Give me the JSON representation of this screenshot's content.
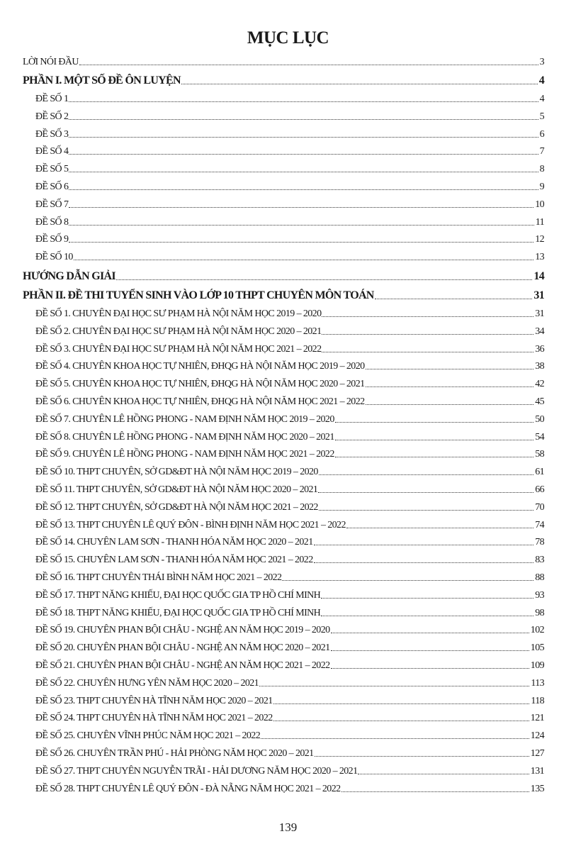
{
  "title": "MỤC LỤC",
  "entries": [
    {
      "label": "LỜI NÓI ĐẦU",
      "page": "3",
      "level": "top"
    },
    {
      "label": "PHẦN I. MỘT SỐ ĐỀ ÔN LUYỆN",
      "page": "4",
      "level": "major"
    },
    {
      "label": "ĐỀ SỐ 1",
      "page": "4",
      "level": "sub"
    },
    {
      "label": "ĐỀ SỐ 2",
      "page": "5",
      "level": "sub"
    },
    {
      "label": "ĐỀ SỐ 3",
      "page": "6",
      "level": "sub"
    },
    {
      "label": "ĐỀ SỐ 4",
      "page": "7",
      "level": "sub"
    },
    {
      "label": "ĐỀ SỐ 5",
      "page": "8",
      "level": "sub"
    },
    {
      "label": "ĐỀ SỐ 6",
      "page": "9",
      "level": "sub"
    },
    {
      "label": "ĐỀ SỐ 7",
      "page": "10",
      "level": "sub"
    },
    {
      "label": "ĐỀ SỐ 8",
      "page": "11",
      "level": "sub"
    },
    {
      "label": "ĐỀ SỐ 9",
      "page": "12",
      "level": "sub"
    },
    {
      "label": "ĐỀ SỐ 10",
      "page": "13",
      "level": "sub"
    },
    {
      "label": "HƯỚNG DẪN GIẢI",
      "page": "14",
      "level": "major"
    },
    {
      "label": "PHẦN II. ĐỀ THI TUYỂN SINH VÀO LỚP 10 THPT CHUYÊN MÔN TOÁN",
      "page": "31",
      "level": "major"
    },
    {
      "label": "ĐỀ SỐ 1. CHUYÊN ĐẠI HỌC SƯ PHẠM HÀ NỘI NĂM HỌC 2019 – 2020",
      "page": "31",
      "level": "sub"
    },
    {
      "label": "ĐỀ SỐ 2. CHUYÊN ĐẠI HỌC SƯ PHẠM HÀ NỘI NĂM HỌC 2020 – 2021",
      "page": "34",
      "level": "sub"
    },
    {
      "label": "ĐỀ SỐ 3. CHUYÊN ĐẠI HỌC SƯ PHẠM HÀ NỘI NĂM HỌC 2021 – 2022",
      "page": "36",
      "level": "sub"
    },
    {
      "label": "ĐỀ SỐ 4. CHUYÊN KHOA HỌC TỰ NHIÊN, ĐHQG HÀ NỘI NĂM HỌC 2019 – 2020",
      "page": "38",
      "level": "sub"
    },
    {
      "label": "ĐỀ SỐ 5. CHUYÊN KHOA HỌC TỰ NHIÊN, ĐHQG HÀ NỘI NĂM HỌC 2020 – 2021",
      "page": "42",
      "level": "sub"
    },
    {
      "label": "ĐỀ SỐ 6. CHUYÊN KHOA HỌC TỰ NHIÊN, ĐHQG HÀ NỘI NĂM HỌC 2021 – 2022",
      "page": "45",
      "level": "sub"
    },
    {
      "label": "ĐỀ SỐ 7. CHUYÊN LÊ HỒNG PHONG - NAM ĐỊNH NĂM HỌC 2019 – 2020",
      "page": "50",
      "level": "sub"
    },
    {
      "label": "ĐỀ SỐ 8. CHUYÊN LÊ HỒNG PHONG - NAM ĐỊNH NĂM HỌC 2020 – 2021",
      "page": "54",
      "level": "sub"
    },
    {
      "label": "ĐỀ SỐ 9. CHUYÊN LÊ HỒNG PHONG - NAM ĐỊNH NĂM HỌC 2021 – 2022",
      "page": "58",
      "level": "sub"
    },
    {
      "label": "ĐỀ SỐ 10. THPT CHUYÊN, SỞ GD&ĐT HÀ NỘI NĂM HỌC 2019 – 2020",
      "page": "61",
      "level": "sub"
    },
    {
      "label": "ĐỀ SỐ 11. THPT CHUYÊN, SỞ GD&ĐT HÀ NỘI NĂM HỌC 2020 – 2021",
      "page": "66",
      "level": "sub"
    },
    {
      "label": "ĐỀ SỐ 12. THPT CHUYÊN, SỞ GD&ĐT HÀ NỘI NĂM HỌC 2021 – 2022",
      "page": "70",
      "level": "sub"
    },
    {
      "label": "ĐỀ SỐ 13. THPT CHUYÊN LÊ QUÝ ĐÔN - BÌNH ĐỊNH NĂM HỌC 2021 – 2022",
      "page": "74",
      "level": "sub"
    },
    {
      "label": "ĐỀ SỐ 14. CHUYÊN LAM SƠN - THANH HÓA NĂM HỌC 2020 – 2021",
      "page": "78",
      "level": "sub"
    },
    {
      "label": "ĐỀ SỐ 15. CHUYÊN LAM SƠN - THANH HÓA NĂM HỌC 2021 – 2022",
      "page": "83",
      "level": "sub"
    },
    {
      "label": "ĐỀ SỐ 16. THPT CHUYÊN THÁI BÌNH NĂM HỌC 2021 – 2022",
      "page": "88",
      "level": "sub"
    },
    {
      "label": "ĐỀ SỐ 17. THPT NĂNG KHIẾU, ĐẠI HỌC QUỐC GIA TP HỒ CHÍ MINH",
      "page": "93",
      "level": "sub"
    },
    {
      "label": "ĐỀ SỐ 18. THPT NĂNG KHIẾU, ĐẠI HỌC QUỐC GIA TP HỒ CHÍ MINH",
      "page": "98",
      "level": "sub"
    },
    {
      "label": "ĐỀ SỐ 19. CHUYÊN PHAN BỘI CHÂU - NGHỆ AN NĂM HỌC 2019 – 2020",
      "page": "102",
      "level": "sub"
    },
    {
      "label": "ĐỀ SỐ 20. CHUYÊN PHAN BỘI CHÂU - NGHỆ AN NĂM HỌC 2020 – 2021",
      "page": "105",
      "level": "sub"
    },
    {
      "label": "ĐỀ SỐ 21. CHUYÊN PHAN BỘI CHÂU - NGHỆ AN NĂM HỌC 2021 – 2022",
      "page": "109",
      "level": "sub"
    },
    {
      "label": "ĐỀ SỐ 22. CHUYÊN HƯNG YÊN NĂM HỌC 2020 – 2021",
      "page": "113",
      "level": "sub"
    },
    {
      "label": "ĐỀ SỐ 23. THPT CHUYÊN HÀ TĨNH NĂM HỌC 2020 – 2021",
      "page": "118",
      "level": "sub"
    },
    {
      "label": "ĐỀ SỐ 24. THPT CHUYÊN HÀ TĨNH NĂM HỌC 2021 – 2022",
      "page": "121",
      "level": "sub"
    },
    {
      "label": "ĐỀ SỐ 25. CHUYÊN VĨNH PHÚC NĂM HỌC 2021 – 2022",
      "page": "124",
      "level": "sub"
    },
    {
      "label": "ĐỀ SỐ 26. CHUYÊN TRẦN PHÚ - HẢI PHÒNG NĂM HỌC 2020 – 2021",
      "page": "127",
      "level": "sub"
    },
    {
      "label": "ĐỀ SỐ 27. THPT CHUYÊN NGUYỄN TRÃI - HẢI DƯƠNG NĂM HỌC 2020 – 2021",
      "page": "131",
      "level": "sub"
    },
    {
      "label": "ĐỀ SỐ 28. THPT CHUYÊN LÊ QUÝ ĐÔN - ĐÀ NẴNG NĂM HỌC 2021 – 2022",
      "page": "135",
      "level": "sub"
    }
  ],
  "page_number": "139"
}
